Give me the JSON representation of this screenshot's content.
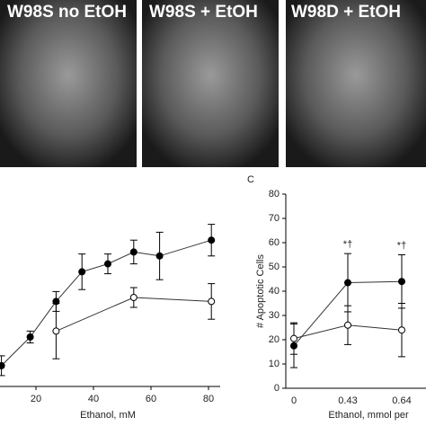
{
  "panels": [
    {
      "label": "W98S no EtOH"
    },
    {
      "label": "W98S + EtOH"
    },
    {
      "label": "W98D + EtOH"
    }
  ],
  "chart_data": [
    {
      "type": "scatter",
      "xlabel": "Ethanol, mM",
      "xlim": [
        0,
        85
      ],
      "xticks": [
        20,
        40,
        60,
        80
      ],
      "ylim": [
        0,
        100
      ],
      "series": [
        {
          "name": "filled",
          "color": "#000",
          "x": [
            8,
            18,
            27,
            36,
            45,
            54,
            63,
            81
          ],
          "values": [
            10.5,
            25,
            43,
            58,
            62,
            68,
            66,
            74
          ],
          "errors": [
            5,
            3,
            5,
            9,
            5,
            6,
            12,
            8
          ]
        },
        {
          "name": "open",
          "color": "#fff",
          "x": [
            27,
            54,
            81
          ],
          "values": [
            28,
            45,
            43
          ],
          "errors": [
            14,
            5,
            9
          ]
        }
      ]
    },
    {
      "type": "line",
      "label": "C",
      "xlabel": "Ethanol, mmol per",
      "ylabel": "# Apoptotic Cells",
      "categories": [
        "0",
        "0.43",
        "0.64"
      ],
      "ylim": [
        0,
        80
      ],
      "yticks": [
        0,
        10,
        20,
        30,
        40,
        50,
        60,
        70,
        80
      ],
      "annotations": [
        {
          "text": "*†",
          "at": 1
        },
        {
          "text": "*†",
          "at": 2
        }
      ],
      "series": [
        {
          "name": "filled",
          "color": "#000",
          "values": [
            17.5,
            43.5,
            44
          ],
          "errors": [
            9,
            12,
            11
          ]
        },
        {
          "name": "open",
          "color": "#fff",
          "values": [
            20.5,
            26,
            24
          ],
          "errors": [
            6.5,
            8,
            11
          ]
        }
      ]
    }
  ]
}
